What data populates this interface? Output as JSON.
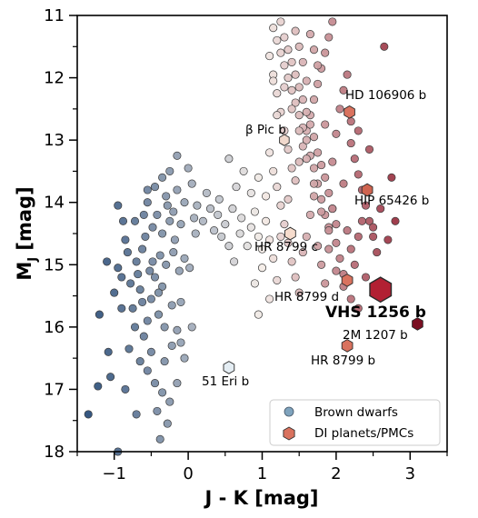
{
  "chart_data": {
    "type": "scatter",
    "title": "",
    "xlabel": "J - K [mag]",
    "ylabel_main": "M",
    "ylabel_sub": "J",
    "ylabel_unit": " [mag]",
    "xlim": [
      -1.5,
      3.5
    ],
    "ylim": [
      18,
      11
    ],
    "y_inverted": true,
    "x_ticks": [
      -1,
      0,
      1,
      2,
      3
    ],
    "x_tick_labels": [
      "−1",
      "0",
      "1",
      "2",
      "3"
    ],
    "y_ticks": [
      11,
      12,
      13,
      14,
      15,
      16,
      17,
      18
    ],
    "y_tick_labels": [
      "11",
      "12",
      "13",
      "14",
      "15",
      "16",
      "17",
      "18"
    ],
    "grid": false,
    "legend": {
      "placement": "lower-right",
      "entries": [
        {
          "label": "Brown dwarfs",
          "marker": "circle",
          "color": "#7fa3bd"
        },
        {
          "label": "DI planets/PMCs",
          "marker": "hexagon",
          "color": "#d9725e"
        }
      ]
    },
    "colormap": {
      "min_color": "#274b78",
      "mid_color": "#f4ede8",
      "max_color": "#8c1528",
      "x_min": -1.4,
      "x_mid": 1.0,
      "x_max": 3.1
    },
    "series": [
      {
        "name": "Brown dwarfs",
        "marker": "circle",
        "points": [
          [
            -1.35,
            17.4
          ],
          [
            -1.22,
            16.95
          ],
          [
            -1.05,
            16.8
          ],
          [
            -1.08,
            16.4
          ],
          [
            -0.95,
            18.0
          ],
          [
            -0.85,
            17.0
          ],
          [
            -0.8,
            16.35
          ],
          [
            -0.72,
            16.0
          ],
          [
            -0.7,
            17.4
          ],
          [
            -0.6,
            16.15
          ],
          [
            -0.55,
            16.7
          ],
          [
            -0.45,
            16.9
          ],
          [
            -0.42,
            17.35
          ],
          [
            -0.35,
            17.05
          ],
          [
            -0.32,
            16.55
          ],
          [
            -0.25,
            17.2
          ],
          [
            -0.22,
            16.3
          ],
          [
            -0.38,
            17.8
          ],
          [
            -0.28,
            17.55
          ],
          [
            -0.15,
            16.05
          ],
          [
            -0.1,
            16.25
          ],
          [
            -0.05,
            16.5
          ],
          [
            -0.55,
            15.9
          ],
          [
            -0.62,
            15.6
          ],
          [
            -0.75,
            15.7
          ],
          [
            -0.9,
            15.2
          ],
          [
            -1.0,
            15.45
          ],
          [
            -0.95,
            15.05
          ],
          [
            -1.1,
            14.95
          ],
          [
            -0.82,
            14.8
          ],
          [
            -0.7,
            14.95
          ],
          [
            -0.65,
            15.4
          ],
          [
            -0.5,
            15.55
          ],
          [
            -0.45,
            15.2
          ],
          [
            -0.35,
            15.35
          ],
          [
            -0.3,
            15.0
          ],
          [
            -0.2,
            14.8
          ],
          [
            -0.12,
            15.1
          ],
          [
            -0.05,
            14.9
          ],
          [
            0.02,
            15.05
          ],
          [
            -0.58,
            14.55
          ],
          [
            -0.48,
            14.4
          ],
          [
            -0.42,
            14.2
          ],
          [
            -0.35,
            14.5
          ],
          [
            -0.25,
            14.3
          ],
          [
            -0.18,
            14.6
          ],
          [
            -0.1,
            14.35
          ],
          [
            -0.6,
            14.2
          ],
          [
            -0.72,
            14.3
          ],
          [
            -0.55,
            14.0
          ],
          [
            -0.45,
            13.75
          ],
          [
            -0.3,
            13.9
          ],
          [
            -0.2,
            14.15
          ],
          [
            -0.15,
            13.8
          ],
          [
            -0.05,
            14.0
          ],
          [
            0.05,
            13.7
          ],
          [
            0.0,
            13.45
          ],
          [
            0.12,
            14.05
          ],
          [
            0.1,
            14.5
          ],
          [
            -0.35,
            13.6
          ],
          [
            -0.25,
            13.5
          ],
          [
            -0.55,
            13.8
          ],
          [
            -0.85,
            14.6
          ],
          [
            -0.9,
            15.7
          ],
          [
            -0.78,
            15.3
          ],
          [
            -1.2,
            15.8
          ],
          [
            -0.4,
            15.8
          ],
          [
            -0.32,
            16.0
          ],
          [
            -0.5,
            16.4
          ],
          [
            -0.65,
            16.55
          ],
          [
            -0.15,
            16.9
          ],
          [
            0.05,
            16.0
          ],
          [
            -0.1,
            15.6
          ],
          [
            -0.68,
            15.15
          ],
          [
            -0.62,
            14.75
          ],
          [
            -0.38,
            14.85
          ],
          [
            -0.28,
            14.05
          ],
          [
            0.08,
            14.25
          ],
          [
            -0.48,
            14.95
          ],
          [
            -0.52,
            15.1
          ],
          [
            -0.4,
            15.45
          ],
          [
            -0.22,
            15.65
          ],
          [
            -0.88,
            14.3
          ],
          [
            -0.95,
            14.05
          ],
          [
            -0.15,
            13.25
          ],
          [
            0.2,
            14.3
          ],
          [
            0.25,
            13.85
          ],
          [
            0.3,
            14.1
          ],
          [
            0.35,
            14.45
          ],
          [
            0.42,
            13.95
          ],
          [
            0.4,
            14.2
          ],
          [
            0.45,
            14.55
          ],
          [
            0.5,
            14.35
          ],
          [
            0.55,
            14.7
          ],
          [
            0.6,
            14.1
          ],
          [
            0.65,
            13.75
          ],
          [
            0.7,
            14.5
          ],
          [
            0.72,
            14.25
          ],
          [
            0.8,
            14.7
          ],
          [
            0.85,
            14.4
          ],
          [
            0.9,
            14.15
          ],
          [
            0.95,
            14.55
          ],
          [
            1.0,
            14.75
          ],
          [
            1.05,
            14.3
          ],
          [
            1.1,
            14.6
          ],
          [
            1.15,
            14.9
          ],
          [
            1.0,
            15.05
          ],
          [
            0.9,
            15.3
          ],
          [
            0.62,
            14.95
          ],
          [
            0.55,
            13.3
          ],
          [
            0.75,
            13.5
          ],
          [
            0.85,
            13.85
          ],
          [
            0.95,
            13.6
          ],
          [
            1.05,
            13.9
          ],
          [
            1.1,
            13.2
          ],
          [
            1.15,
            13.5
          ],
          [
            1.2,
            13.75
          ],
          [
            1.25,
            14.05
          ],
          [
            1.3,
            14.35
          ],
          [
            1.35,
            14.65
          ],
          [
            1.4,
            14.95
          ],
          [
            1.45,
            15.2
          ],
          [
            1.5,
            15.45
          ],
          [
            1.55,
            14.8
          ],
          [
            1.6,
            14.55
          ],
          [
            1.65,
            14.2
          ],
          [
            1.7,
            13.9
          ],
          [
            1.75,
            14.7
          ],
          [
            1.8,
            15.0
          ],
          [
            1.85,
            15.3
          ],
          [
            1.9,
            14.4
          ],
          [
            1.95,
            14.1
          ],
          [
            2.0,
            14.65
          ],
          [
            2.05,
            14.9
          ],
          [
            2.1,
            15.15
          ],
          [
            2.15,
            14.45
          ],
          [
            2.2,
            14.75
          ],
          [
            2.25,
            15.0
          ],
          [
            2.3,
            14.55
          ],
          [
            2.35,
            14.3
          ],
          [
            0.95,
            15.8
          ],
          [
            1.1,
            15.55
          ],
          [
            1.2,
            15.25
          ],
          [
            1.25,
            14.55
          ],
          [
            1.35,
            13.95
          ],
          [
            1.45,
            13.65
          ],
          [
            1.5,
            13.35
          ],
          [
            1.55,
            13.1
          ],
          [
            1.6,
            12.85
          ],
          [
            1.65,
            12.6
          ],
          [
            1.7,
            12.35
          ],
          [
            1.75,
            12.1
          ],
          [
            1.8,
            11.85
          ],
          [
            1.85,
            11.6
          ],
          [
            1.9,
            11.35
          ],
          [
            1.95,
            11.1
          ],
          [
            2.0,
            12.9
          ],
          [
            2.05,
            12.5
          ],
          [
            2.1,
            12.2
          ],
          [
            2.15,
            11.95
          ],
          [
            2.2,
            13.05
          ],
          [
            2.25,
            13.3
          ],
          [
            2.3,
            13.55
          ],
          [
            2.35,
            13.8
          ],
          [
            2.4,
            14.05
          ],
          [
            2.45,
            14.3
          ],
          [
            2.5,
            14.55
          ],
          [
            2.55,
            14.8
          ],
          [
            1.15,
            11.2
          ],
          [
            1.2,
            11.4
          ],
          [
            1.25,
            11.6
          ],
          [
            1.3,
            11.8
          ],
          [
            1.35,
            12.0
          ],
          [
            1.4,
            12.2
          ],
          [
            1.45,
            12.4
          ],
          [
            1.5,
            12.6
          ],
          [
            1.55,
            12.8
          ],
          [
            1.6,
            13.0
          ],
          [
            1.65,
            13.25
          ],
          [
            1.7,
            13.45
          ],
          [
            1.75,
            13.7
          ],
          [
            1.8,
            13.95
          ],
          [
            1.85,
            14.2
          ],
          [
            1.9,
            14.45
          ],
          [
            1.1,
            11.65
          ],
          [
            1.15,
            11.95
          ],
          [
            1.2,
            12.25
          ],
          [
            1.25,
            12.55
          ],
          [
            1.3,
            12.85
          ],
          [
            1.35,
            13.15
          ],
          [
            1.4,
            13.45
          ],
          [
            1.45,
            11.25
          ],
          [
            1.5,
            11.5
          ],
          [
            1.55,
            11.75
          ],
          [
            1.6,
            12.05
          ],
          [
            1.65,
            11.3
          ],
          [
            1.7,
            11.55
          ],
          [
            1.75,
            11.8
          ],
          [
            1.25,
            11.1
          ],
          [
            1.3,
            11.35
          ],
          [
            1.35,
            11.55
          ],
          [
            1.4,
            11.75
          ],
          [
            1.45,
            11.95
          ],
          [
            1.5,
            12.15
          ],
          [
            1.55,
            12.35
          ],
          [
            1.6,
            12.55
          ],
          [
            1.65,
            12.75
          ],
          [
            1.7,
            12.95
          ],
          [
            1.75,
            13.2
          ],
          [
            1.8,
            13.4
          ],
          [
            1.85,
            13.6
          ],
          [
            1.9,
            13.85
          ],
          [
            1.95,
            14.1
          ],
          [
            2.0,
            14.35
          ],
          [
            1.15,
            12.05
          ],
          [
            1.2,
            12.6
          ],
          [
            1.3,
            12.15
          ],
          [
            1.4,
            12.5
          ],
          [
            1.5,
            12.85
          ],
          [
            1.6,
            13.3
          ],
          [
            1.7,
            13.7
          ],
          [
            1.8,
            14.15
          ],
          [
            1.9,
            14.75
          ],
          [
            2.0,
            15.1
          ],
          [
            2.1,
            15.35
          ],
          [
            2.2,
            15.55
          ],
          [
            2.3,
            15.7
          ],
          [
            2.4,
            15.2
          ],
          [
            2.5,
            14.4
          ],
          [
            2.6,
            14.1
          ],
          [
            2.7,
            14.6
          ],
          [
            2.3,
            12.85
          ],
          [
            2.45,
            13.15
          ],
          [
            2.65,
            11.5
          ],
          [
            2.75,
            13.6
          ],
          [
            2.8,
            14.3
          ],
          [
            2.2,
            12.7
          ],
          [
            2.1,
            13.7
          ],
          [
            1.95,
            13.35
          ],
          [
            1.85,
            12.75
          ]
        ]
      },
      {
        "name": "DI planets/PMCs",
        "marker": "hexagon",
        "points": [
          [
            2.18,
            12.55
          ],
          [
            2.42,
            13.8
          ],
          [
            2.15,
            15.25
          ],
          [
            2.6,
            15.4
          ],
          [
            3.1,
            15.95
          ],
          [
            2.15,
            16.3
          ],
          [
            0.55,
            16.65
          ],
          [
            1.38,
            14.5
          ],
          [
            1.3,
            13.0
          ]
        ],
        "sizes": [
          1.0,
          1.0,
          1.0,
          2.0,
          1.0,
          1.0,
          1.0,
          1.0,
          0.9
        ],
        "colors": [
          "#d9725e",
          "#cf6450",
          "#d9725e",
          "#b22033",
          "#7a0f22",
          "#d9725e",
          "#e4edf3",
          "#f6dccd",
          "#f0d8cc"
        ]
      }
    ],
    "annotations": [
      {
        "text": "HD 106906 b",
        "bold": false
      },
      {
        "text": "β Pic b",
        "bold": false
      },
      {
        "text": "HIP 65426 b",
        "bold": false
      },
      {
        "text": "HR 8799 c",
        "bold": false
      },
      {
        "text": "HR 8799 d",
        "bold": false
      },
      {
        "text": "VHS 1256 b",
        "bold": true
      },
      {
        "text": "2M 1207 b",
        "bold": false
      },
      {
        "text": "HR 8799 b",
        "bold": false
      },
      {
        "text": "51 Eri b",
        "bold": false
      }
    ]
  }
}
